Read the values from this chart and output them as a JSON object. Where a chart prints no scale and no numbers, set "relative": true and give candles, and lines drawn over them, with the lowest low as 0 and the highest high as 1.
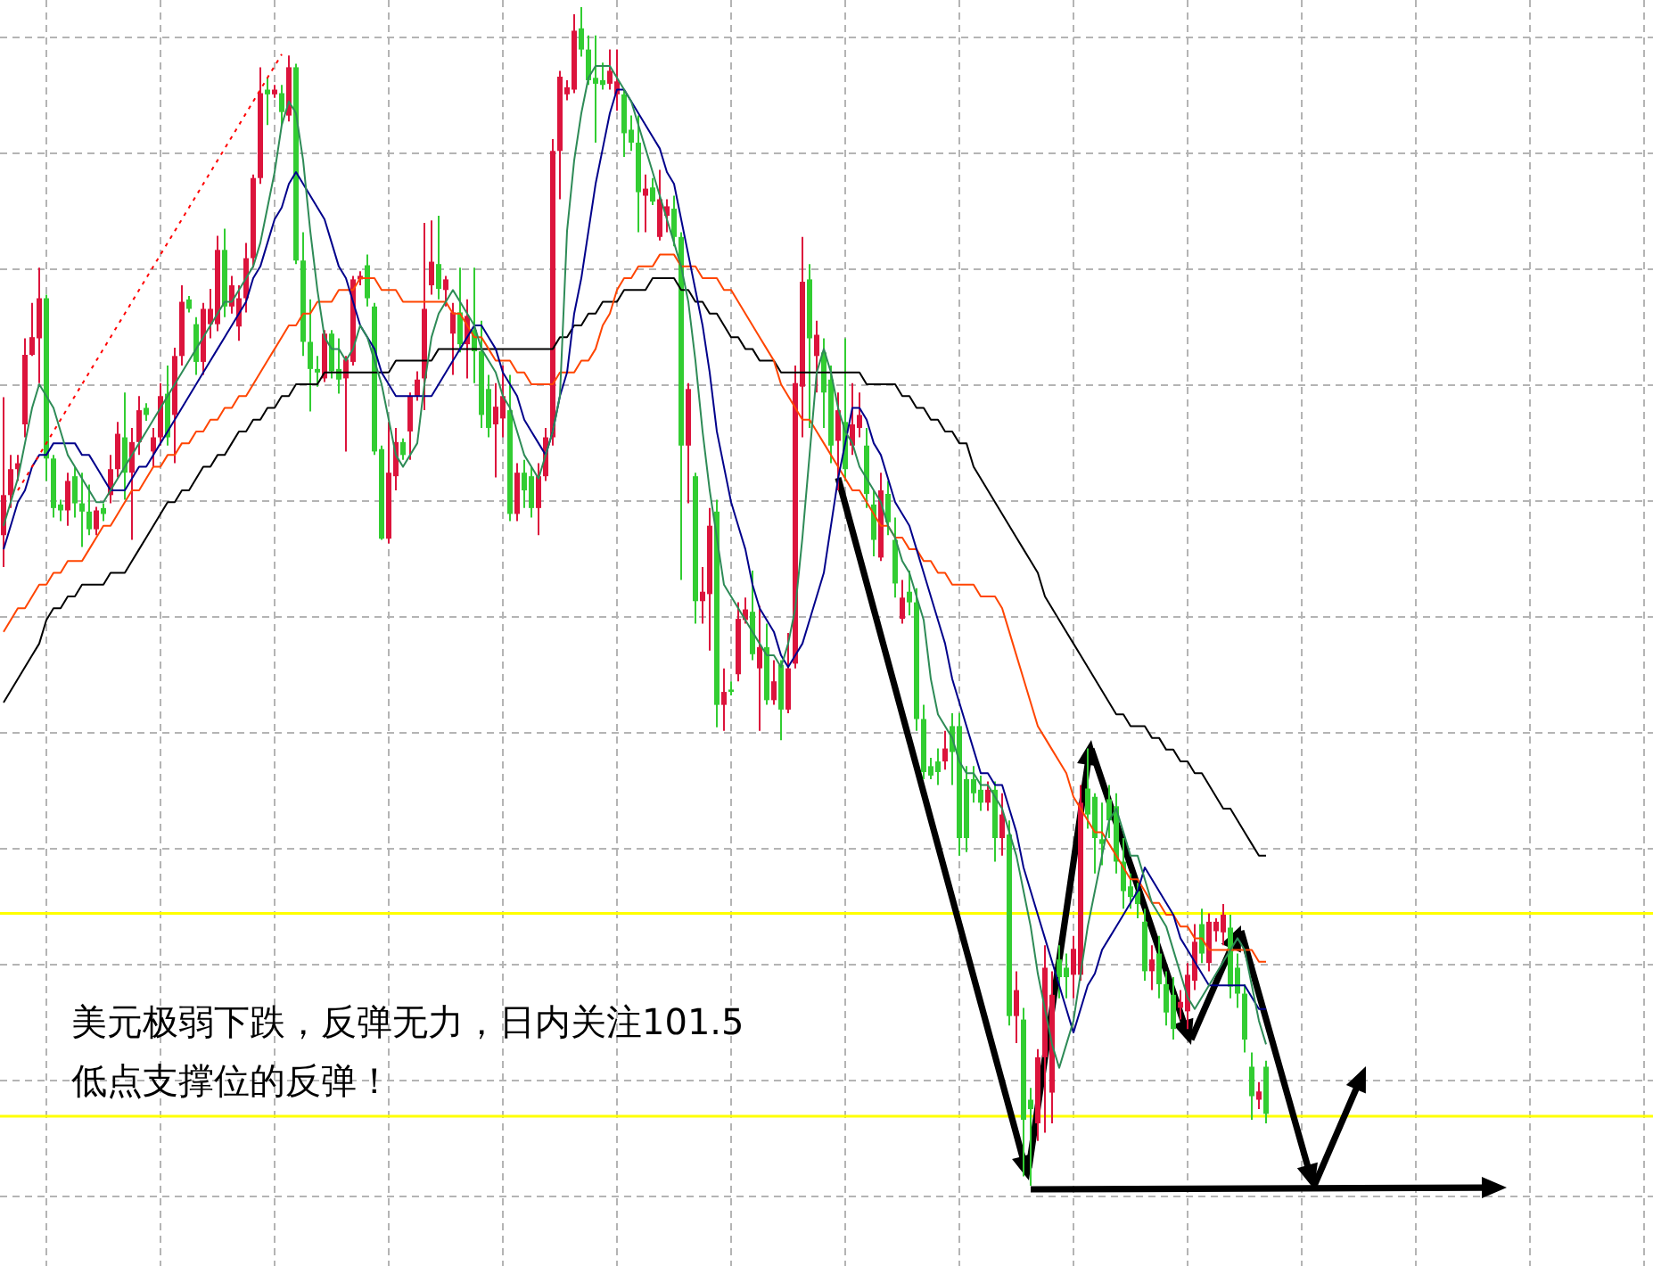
{
  "chart_data": {
    "type": "candlestick",
    "relative": true,
    "grid": true,
    "categories": [
      null,
      null,
      null,
      null,
      null,
      null,
      null,
      null,
      null,
      null,
      null,
      null,
      null,
      null,
      null,
      null,
      null,
      null,
      null,
      null,
      null,
      null,
      null,
      null,
      null,
      null,
      null,
      null,
      null,
      null,
      null,
      null,
      null,
      null,
      null,
      null,
      null,
      null,
      null,
      null,
      null,
      null,
      null,
      null,
      null,
      null,
      null,
      null,
      null,
      null,
      null,
      null,
      null,
      null,
      null,
      null,
      null,
      null,
      null,
      null,
      null,
      null,
      null,
      null,
      null,
      null,
      null,
      null,
      null,
      null,
      null,
      null,
      null,
      null,
      null,
      null,
      null,
      null,
      null,
      null,
      null,
      null,
      null,
      null,
      null,
      null,
      null,
      null,
      null,
      null,
      null,
      null,
      null,
      null,
      null,
      null,
      null,
      null,
      null,
      null,
      null,
      null,
      null,
      null,
      null,
      null,
      null,
      null,
      null,
      null,
      null,
      null,
      null,
      null,
      null,
      null,
      null,
      null,
      null,
      null,
      null,
      null,
      null,
      null,
      null,
      null,
      null,
      null,
      null,
      null,
      null,
      null,
      null,
      null,
      null,
      null,
      null,
      null,
      null,
      null,
      null,
      null,
      null,
      null,
      null,
      null,
      null,
      null,
      null,
      null,
      null,
      null,
      null,
      null,
      null,
      null,
      null,
      null,
      null,
      null,
      null,
      null,
      null,
      null,
      null,
      null,
      null,
      null,
      null,
      null,
      null,
      null,
      null,
      null,
      null,
      null,
      null,
      null
    ],
    "ohlc": [
      [
        0.552,
        0.669,
        0.525,
        0.586
      ],
      [
        0.586,
        0.62,
        0.575,
        0.608
      ],
      [
        0.608,
        0.62,
        0.598,
        0.613
      ],
      [
        0.646,
        0.719,
        0.635,
        0.705
      ],
      [
        0.705,
        0.749,
        0.704,
        0.72
      ],
      [
        0.719,
        0.779,
        0.681,
        0.753
      ],
      [
        0.753,
        0.756,
        0.598,
        0.617
      ],
      [
        0.617,
        0.62,
        0.567,
        0.575
      ],
      [
        0.578,
        0.582,
        0.564,
        0.573
      ],
      [
        0.573,
        0.605,
        0.56,
        0.598
      ],
      [
        0.602,
        0.61,
        0.567,
        0.579
      ],
      [
        0.579,
        0.605,
        0.542,
        0.572
      ],
      [
        0.572,
        0.595,
        0.552,
        0.557
      ],
      [
        0.557,
        0.576,
        0.552,
        0.573
      ],
      [
        0.575,
        0.579,
        0.564,
        0.57
      ],
      [
        0.586,
        0.62,
        0.579,
        0.608
      ],
      [
        0.608,
        0.648,
        0.601,
        0.638
      ],
      [
        0.635,
        0.673,
        0.582,
        0.605
      ],
      [
        0.605,
        0.643,
        0.548,
        0.631
      ],
      [
        0.631,
        0.67,
        0.62,
        0.658
      ],
      [
        0.66,
        0.664,
        0.649,
        0.654
      ],
      [
        0.623,
        0.643,
        0.61,
        0.635
      ],
      [
        0.635,
        0.681,
        0.628,
        0.67
      ],
      [
        0.672,
        0.696,
        0.628,
        0.635
      ],
      [
        0.654,
        0.711,
        0.613,
        0.704
      ],
      [
        0.704,
        0.764,
        0.696,
        0.75
      ],
      [
        0.752,
        0.755,
        0.741,
        0.744
      ],
      [
        0.731,
        0.737,
        0.688,
        0.699
      ],
      [
        0.699,
        0.749,
        0.688,
        0.744
      ],
      [
        0.731,
        0.761,
        0.719,
        0.744
      ],
      [
        0.731,
        0.806,
        0.725,
        0.794
      ],
      [
        0.794,
        0.812,
        0.737,
        0.746
      ],
      [
        0.746,
        0.772,
        0.74,
        0.764
      ],
      [
        0.729,
        0.764,
        0.717,
        0.753
      ],
      [
        0.753,
        0.8,
        0.741,
        0.787
      ],
      [
        0.787,
        0.858,
        0.779,
        0.855
      ],
      [
        0.855,
        0.949,
        0.85,
        0.927
      ],
      [
        0.93,
        0.94,
        0.9,
        0.926
      ],
      [
        0.926,
        0.934,
        0.923,
        0.93
      ],
      [
        0.927,
        0.934,
        0.9,
        0.911
      ],
      [
        0.908,
        0.959,
        0.903,
        0.949
      ],
      [
        0.949,
        0.952,
        0.782,
        0.785
      ],
      [
        0.785,
        0.809,
        0.704,
        0.716
      ],
      [
        0.716,
        0.752,
        0.657,
        0.693
      ],
      [
        0.693,
        0.704,
        0.678,
        0.69
      ],
      [
        0.685,
        0.726,
        0.682,
        0.723
      ],
      [
        0.723,
        0.726,
        0.685,
        0.691
      ],
      [
        0.693,
        0.719,
        0.672,
        0.684
      ],
      [
        0.685,
        0.704,
        0.623,
        0.701
      ],
      [
        0.699,
        0.772,
        0.696,
        0.769
      ],
      [
        0.769,
        0.776,
        0.764,
        0.772
      ],
      [
        0.781,
        0.79,
        0.746,
        0.753
      ],
      [
        0.746,
        0.749,
        0.62,
        0.623
      ],
      [
        0.625,
        0.628,
        0.548,
        0.549
      ],
      [
        0.549,
        0.648,
        0.545,
        0.605
      ],
      [
        0.602,
        0.643,
        0.59,
        0.631
      ],
      [
        0.631,
        0.634,
        0.616,
        0.62
      ],
      [
        0.64,
        0.673,
        0.616,
        0.67
      ],
      [
        0.67,
        0.691,
        0.666,
        0.684
      ],
      [
        0.685,
        0.817,
        0.658,
        0.744
      ],
      [
        0.764,
        0.819,
        0.756,
        0.784
      ],
      [
        0.782,
        0.823,
        0.752,
        0.761
      ],
      [
        0.76,
        0.772,
        0.746,
        0.769
      ],
      [
        0.723,
        0.749,
        0.688,
        0.741
      ],
      [
        0.741,
        0.779,
        0.707,
        0.714
      ],
      [
        0.714,
        0.752,
        0.685,
        0.738
      ],
      [
        0.726,
        0.779,
        0.681,
        0.708
      ],
      [
        0.708,
        0.734,
        0.643,
        0.654
      ],
      [
        0.676,
        0.688,
        0.635,
        0.643
      ],
      [
        0.646,
        0.681,
        0.601,
        0.661
      ],
      [
        0.651,
        0.696,
        0.635,
        0.67
      ],
      [
        0.658,
        0.688,
        0.564,
        0.57
      ],
      [
        0.57,
        0.613,
        0.564,
        0.605
      ],
      [
        0.605,
        0.616,
        0.575,
        0.59
      ],
      [
        0.602,
        0.61,
        0.567,
        0.575
      ],
      [
        0.575,
        0.613,
        0.552,
        0.602
      ],
      [
        0.602,
        0.643,
        0.598,
        0.635
      ],
      [
        0.635,
        0.888,
        0.628,
        0.878
      ],
      [
        0.878,
        0.946,
        0.837,
        0.941
      ],
      [
        0.926,
        0.938,
        0.921,
        0.932
      ],
      [
        0.93,
        0.994,
        0.927,
        0.98
      ],
      [
        0.982,
        1,
        0.958,
        0.964
      ],
      [
        0.964,
        0.976,
        0.934,
        0.938
      ],
      [
        0.94,
        0.976,
        0.885,
        0.935
      ],
      [
        0.938,
        0.953,
        0.93,
        0.934
      ],
      [
        0.935,
        0.964,
        0.93,
        0.946
      ],
      [
        0.926,
        0.964,
        0.912,
        0.937
      ],
      [
        0.926,
        0.93,
        0.873,
        0.893
      ],
      [
        0.896,
        0.908,
        0.878,
        0.885
      ],
      [
        0.885,
        0.908,
        0.809,
        0.843
      ],
      [
        0.84,
        0.858,
        0.809,
        0.846
      ],
      [
        0.847,
        0.855,
        0.832,
        0.835
      ],
      [
        0.805,
        0.862,
        0.802,
        0.837
      ],
      [
        0.823,
        0.837,
        0.809,
        0.831
      ],
      [
        0.829,
        0.84,
        0.797,
        0.805
      ],
      [
        0.805,
        0.809,
        0.514,
        0.628
      ],
      [
        0.628,
        0.681,
        0.579,
        0.676
      ],
      [
        0.602,
        0.605,
        0.477,
        0.496
      ],
      [
        0.496,
        0.525,
        0.477,
        0.504
      ],
      [
        0.502,
        0.575,
        0.454,
        0.56
      ],
      [
        0.572,
        0.582,
        0.389,
        0.408
      ],
      [
        0.408,
        0.439,
        0.386,
        0.419
      ],
      [
        0.421,
        0.428,
        0.416,
        0.419
      ],
      [
        0.434,
        0.495,
        0.428,
        0.481
      ],
      [
        0.48,
        0.499,
        0.477,
        0.489
      ],
      [
        0.487,
        0.522,
        0.446,
        0.451
      ],
      [
        0.439,
        0.492,
        0.386,
        0.457
      ],
      [
        0.457,
        0.477,
        0.408,
        0.412
      ],
      [
        0.412,
        0.446,
        0.408,
        0.428
      ],
      [
        0.442,
        0.446,
        0.378,
        0.404
      ],
      [
        0.404,
        0.469,
        0.401,
        0.439
      ],
      [
        0.443,
        0.696,
        0.439,
        0.681
      ],
      [
        0.678,
        0.805,
        0.635,
        0.767
      ],
      [
        0.769,
        0.782,
        0.643,
        0.719
      ],
      [
        0.704,
        0.734,
        0.673,
        0.722
      ],
      [
        0.707,
        0.719,
        0.643,
        0.673
      ],
      [
        0.684,
        0.696,
        0.613,
        0.628
      ],
      [
        0.632,
        0.673,
        0.59,
        0.658
      ],
      [
        0.648,
        0.719,
        0.598,
        0.608
      ],
      [
        0.628,
        0.681,
        0.62,
        0.646
      ],
      [
        0.643,
        0.673,
        0.635,
        0.654
      ],
      [
        0.628,
        0.643,
        0.575,
        0.587
      ],
      [
        0.578,
        0.59,
        0.534,
        0.548
      ],
      [
        0.533,
        0.605,
        0.53,
        0.59
      ],
      [
        0.587,
        0.598,
        0.552,
        0.563
      ],
      [
        0.548,
        0.567,
        0.499,
        0.511
      ],
      [
        0.481,
        0.514,
        0.477,
        0.499
      ],
      [
        0.504,
        0.522,
        0.484,
        0.495
      ],
      [
        0.495,
        0.507,
        0.386,
        0.396
      ],
      [
        0.396,
        0.408,
        0.345,
        0.351
      ],
      [
        0.356,
        0.363,
        0.345,
        0.348
      ],
      [
        0.36,
        0.371,
        0.34,
        0.351
      ],
      [
        0.36,
        0.386,
        0.353,
        0.371
      ],
      [
        0.39,
        0.401,
        0.34,
        0.368
      ],
      [
        0.39,
        0.401,
        0.28,
        0.295
      ],
      [
        0.345,
        0.356,
        0.283,
        0.295
      ],
      [
        0.345,
        0.356,
        0.325,
        0.333
      ],
      [
        0.336,
        0.348,
        0.318,
        0.325
      ],
      [
        0.325,
        0.343,
        0.318,
        0.336
      ],
      [
        0.336,
        0.343,
        0.275,
        0.295
      ],
      [
        0.295,
        0.333,
        0.28,
        0.315
      ],
      [
        0.298,
        0.31,
        0.136,
        0.144
      ],
      [
        0.144,
        0.182,
        0.121,
        0.166
      ],
      [
        0.141,
        0.151,
        0.008,
        0.056
      ],
      [
        0.073,
        0.083,
        0,
        0.065
      ],
      [
        0.053,
        0.116,
        0.038,
        0.109
      ],
      [
        0.109,
        0.204,
        0.045,
        0.185
      ],
      [
        0.079,
        0.182,
        0.053,
        0.162
      ],
      [
        0.192,
        0.204,
        0.159,
        0.177
      ],
      [
        0.185,
        0.197,
        0.159,
        0.177
      ],
      [
        0.179,
        0.212,
        0.159,
        0.201
      ],
      [
        0.179,
        0.34,
        0.174,
        0.325
      ],
      [
        0.337,
        0.371,
        0.303,
        0.315
      ],
      [
        0.33,
        0.333,
        0.265,
        0.295
      ],
      [
        0.294,
        0.325,
        0.272,
        0.29
      ],
      [
        0.328,
        0.34,
        0.295,
        0.31
      ],
      [
        0.322,
        0.333,
        0.265,
        0.275
      ],
      [
        0.275,
        0.295,
        0.235,
        0.25
      ],
      [
        0.254,
        0.265,
        0.235,
        0.245
      ],
      [
        0.25,
        0.257,
        0.227,
        0.239
      ],
      [
        0.224,
        0.235,
        0.174,
        0.182
      ],
      [
        0.182,
        0.204,
        0.166,
        0.192
      ],
      [
        0.197,
        0.212,
        0.159,
        0.171
      ],
      [
        0.171,
        0.182,
        0.136,
        0.147
      ],
      [
        0.162,
        0.177,
        0.124,
        0.133
      ],
      [
        0.151,
        0.166,
        0.141,
        0.156
      ],
      [
        0.148,
        0.189,
        0.133,
        0.179
      ],
      [
        0.174,
        0.222,
        0.166,
        0.207
      ],
      [
        0.222,
        0.235,
        0.189,
        0.197
      ],
      [
        0.189,
        0.231,
        0.182,
        0.224
      ],
      [
        0.216,
        0.227,
        0.207,
        0.224
      ],
      [
        0.215,
        0.239,
        0.204,
        0.23
      ],
      [
        0.219,
        0.23,
        0.159,
        0.169
      ],
      [
        0.185,
        0.197,
        0.151,
        0.163
      ],
      [
        0.163,
        0.171,
        0.113,
        0.124
      ],
      [
        0.101,
        0.113,
        0.056,
        0.076
      ],
      [
        0.073,
        0.088,
        0.065,
        0.08
      ],
      [
        0.101,
        0.106,
        0.053,
        0.061
      ]
    ],
    "colors": [
      "#dc143c",
      "#dc143c",
      "#dc143c",
      "#dc143c",
      "#dc143c",
      "#dc143c",
      "#32cd32",
      "#32cd32",
      "#32cd32",
      "#dc143c",
      "#32cd32",
      "#32cd32",
      "#32cd32",
      "#dc143c",
      "#32cd32",
      "#dc143c",
      "#dc143c",
      "#32cd32",
      "#dc143c",
      "#dc143c",
      "#32cd32",
      "#dc143c",
      "#dc143c",
      "#32cd32",
      "#dc143c",
      "#dc143c",
      "#32cd32",
      "#32cd32",
      "#dc143c",
      "#dc143c",
      "#dc143c",
      "#32cd32",
      "#dc143c",
      "#dc143c",
      "#dc143c",
      "#dc143c",
      "#dc143c",
      "#32cd32",
      "#dc143c",
      "#32cd32",
      "#dc143c",
      "#32cd32",
      "#32cd32",
      "#32cd32",
      "#32cd32",
      "#dc143c",
      "#32cd32",
      "#32cd32",
      "#dc143c",
      "#dc143c",
      "#dc143c",
      "#32cd32",
      "#32cd32",
      "#32cd32",
      "#dc143c",
      "#dc143c",
      "#32cd32",
      "#dc143c",
      "#dc143c",
      "#dc143c",
      "#dc143c",
      "#32cd32",
      "#dc143c",
      "#dc143c",
      "#32cd32",
      "#dc143c",
      "#32cd32",
      "#32cd32",
      "#32cd32",
      "#dc143c",
      "#dc143c",
      "#32cd32",
      "#dc143c",
      "#32cd32",
      "#32cd32",
      "#dc143c",
      "#dc143c",
      "#dc143c",
      "#dc143c",
      "#dc143c",
      "#dc143c",
      "#32cd32",
      "#32cd32",
      "#32cd32",
      "#32cd32",
      "#dc143c",
      "#dc143c",
      "#32cd32",
      "#32cd32",
      "#32cd32",
      "#dc143c",
      "#32cd32",
      "#dc143c",
      "#dc143c",
      "#32cd32",
      "#32cd32",
      "#dc143c",
      "#32cd32",
      "#dc143c",
      "#dc143c",
      "#32cd32",
      "#dc143c",
      "#32cd32",
      "#dc143c",
      "#dc143c",
      "#32cd32",
      "#dc143c",
      "#32cd32",
      "#dc143c",
      "#32cd32",
      "#dc143c",
      "#dc143c",
      "#dc143c",
      "#32cd32",
      "#dc143c",
      "#32cd32",
      "#32cd32",
      "#dc143c",
      "#32cd32",
      "#dc143c",
      "#dc143c",
      "#32cd32",
      "#32cd32",
      "#dc143c",
      "#32cd32",
      "#32cd32",
      "#dc143c",
      "#32cd32",
      "#32cd32",
      "#32cd32",
      "#32cd32",
      "#32cd32",
      "#dc143c",
      "#32cd32",
      "#32cd32",
      "#32cd32",
      "#32cd32",
      "#32cd32",
      "#dc143c",
      "#32cd32",
      "#dc143c",
      "#32cd32",
      "#dc143c",
      "#32cd32",
      "#32cd32",
      "#dc143c",
      "#dc143c",
      "#dc143c",
      "#32cd32",
      "#32cd32",
      "#dc143c",
      "#dc143c",
      "#32cd32",
      "#32cd32",
      "#32cd32",
      "#32cd32",
      "#32cd32",
      "#32cd32",
      "#32cd32",
      "#32cd32",
      "#32cd32",
      "#dc143c",
      "#32cd32",
      "#32cd32",
      "#32cd32",
      "#dc143c",
      "#dc143c",
      "#dc143c",
      "#32cd32",
      "#dc143c",
      "#dc143c",
      "#dc143c",
      "#32cd32",
      "#32cd32",
      "#32cd32",
      "#32cd32",
      "#dc143c",
      "#32cd32"
    ],
    "series": [
      {
        "type": "line",
        "color": "#000000",
        "values": [
          0.41,
          0.42,
          0.43,
          0.44,
          0.45,
          0.46,
          0.48,
          0.49,
          0.49,
          0.5,
          0.5,
          0.51,
          0.51,
          0.51,
          0.51,
          0.52,
          0.52,
          0.52,
          0.53,
          0.54,
          0.55,
          0.56,
          0.57,
          0.58,
          0.58,
          0.59,
          0.59,
          0.6,
          0.61,
          0.61,
          0.62,
          0.62,
          0.63,
          0.64,
          0.64,
          0.65,
          0.65,
          0.66,
          0.66,
          0.67,
          0.67,
          0.68,
          0.68,
          0.68,
          0.68,
          0.69,
          0.69,
          0.69,
          0.69,
          0.69,
          0.69,
          0.69,
          0.69,
          0.69,
          0.69,
          0.7,
          0.7,
          0.7,
          0.7,
          0.7,
          0.7,
          0.71,
          0.71,
          0.71,
          0.71,
          0.71,
          0.71,
          0.71,
          0.71,
          0.71,
          0.71,
          0.71,
          0.71,
          0.71,
          0.71,
          0.71,
          0.71,
          0.71,
          0.72,
          0.72,
          0.73,
          0.73,
          0.74,
          0.74,
          0.75,
          0.75,
          0.75,
          0.76,
          0.76,
          0.76,
          0.76,
          0.77,
          0.77,
          0.77,
          0.77,
          0.76,
          0.76,
          0.75,
          0.75,
          0.74,
          0.74,
          0.73,
          0.72,
          0.72,
          0.71,
          0.71,
          0.7,
          0.7,
          0.7,
          0.69,
          0.69,
          0.69,
          0.69,
          0.69,
          0.69,
          0.69,
          0.69,
          0.69,
          0.69,
          0.69,
          0.69,
          0.68,
          0.68,
          0.68,
          0.68,
          0.68,
          0.67,
          0.67,
          0.66,
          0.66,
          0.65,
          0.65,
          0.64,
          0.64,
          0.63,
          0.63,
          0.61,
          0.6,
          0.59,
          0.58,
          0.57,
          0.56,
          0.55,
          0.54,
          0.53,
          0.52,
          0.5,
          0.49,
          0.48,
          0.47,
          0.46,
          0.45,
          0.44,
          0.43,
          0.42,
          0.41,
          0.4,
          0.4,
          0.39,
          0.39,
          0.39,
          0.38,
          0.38,
          0.37,
          0.37,
          0.36,
          0.36,
          0.35,
          0.35,
          0.34,
          0.33,
          0.32,
          0.32,
          0.31,
          0.3,
          0.29,
          0.28,
          0.28
        ]
      },
      {
        "type": "line",
        "color": "#ff4500",
        "values": [
          0.47,
          0.48,
          0.49,
          0.49,
          0.5,
          0.51,
          0.51,
          0.52,
          0.52,
          0.53,
          0.53,
          0.53,
          0.54,
          0.55,
          0.56,
          0.56,
          0.57,
          0.58,
          0.59,
          0.59,
          0.6,
          0.61,
          0.61,
          0.62,
          0.62,
          0.63,
          0.63,
          0.64,
          0.64,
          0.65,
          0.65,
          0.66,
          0.66,
          0.67,
          0.67,
          0.68,
          0.69,
          0.7,
          0.71,
          0.72,
          0.73,
          0.73,
          0.74,
          0.74,
          0.75,
          0.75,
          0.75,
          0.76,
          0.76,
          0.76,
          0.77,
          0.77,
          0.77,
          0.76,
          0.76,
          0.76,
          0.75,
          0.75,
          0.75,
          0.75,
          0.75,
          0.75,
          0.75,
          0.74,
          0.74,
          0.73,
          0.72,
          0.72,
          0.71,
          0.7,
          0.7,
          0.7,
          0.69,
          0.69,
          0.68,
          0.68,
          0.68,
          0.68,
          0.69,
          0.69,
          0.69,
          0.7,
          0.7,
          0.71,
          0.73,
          0.74,
          0.76,
          0.77,
          0.77,
          0.78,
          0.78,
          0.78,
          0.79,
          0.79,
          0.79,
          0.78,
          0.78,
          0.78,
          0.77,
          0.77,
          0.77,
          0.76,
          0.76,
          0.75,
          0.74,
          0.73,
          0.72,
          0.71,
          0.7,
          0.68,
          0.67,
          0.66,
          0.65,
          0.65,
          0.64,
          0.63,
          0.62,
          0.61,
          0.6,
          0.59,
          0.59,
          0.58,
          0.57,
          0.56,
          0.56,
          0.55,
          0.55,
          0.54,
          0.54,
          0.53,
          0.53,
          0.52,
          0.52,
          0.51,
          0.51,
          0.51,
          0.51,
          0.5,
          0.5,
          0.5,
          0.49,
          0.47,
          0.45,
          0.43,
          0.41,
          0.39,
          0.38,
          0.37,
          0.36,
          0.35,
          0.33,
          0.32,
          0.31,
          0.3,
          0.3,
          0.29,
          0.28,
          0.27,
          0.26,
          0.26,
          0.25,
          0.24,
          0.24,
          0.23,
          0.23,
          0.22,
          0.22,
          0.21,
          0.21,
          0.2,
          0.2,
          0.2,
          0.2,
          0.2,
          0.2,
          0.2,
          0.19,
          0.19
        ]
      },
      {
        "type": "line",
        "color": "#00008b",
        "values": [
          0.54,
          0.56,
          0.58,
          0.59,
          0.61,
          0.62,
          0.62,
          0.63,
          0.63,
          0.63,
          0.63,
          0.62,
          0.62,
          0.61,
          0.6,
          0.59,
          0.59,
          0.59,
          0.6,
          0.61,
          0.61,
          0.62,
          0.63,
          0.64,
          0.65,
          0.66,
          0.67,
          0.68,
          0.69,
          0.7,
          0.71,
          0.72,
          0.73,
          0.74,
          0.75,
          0.77,
          0.78,
          0.8,
          0.82,
          0.83,
          0.85,
          0.86,
          0.85,
          0.84,
          0.83,
          0.82,
          0.8,
          0.78,
          0.77,
          0.75,
          0.73,
          0.72,
          0.71,
          0.69,
          0.68,
          0.67,
          0.67,
          0.67,
          0.67,
          0.67,
          0.67,
          0.68,
          0.69,
          0.7,
          0.71,
          0.72,
          0.73,
          0.73,
          0.72,
          0.71,
          0.69,
          0.68,
          0.67,
          0.65,
          0.64,
          0.63,
          0.62,
          0.64,
          0.67,
          0.69,
          0.74,
          0.77,
          0.81,
          0.85,
          0.88,
          0.91,
          0.93,
          0.93,
          0.92,
          0.91,
          0.9,
          0.89,
          0.88,
          0.86,
          0.85,
          0.82,
          0.79,
          0.76,
          0.73,
          0.69,
          0.64,
          0.61,
          0.58,
          0.56,
          0.54,
          0.51,
          0.49,
          0.48,
          0.47,
          0.45,
          0.44,
          0.45,
          0.46,
          0.48,
          0.5,
          0.52,
          0.56,
          0.6,
          0.63,
          0.66,
          0.66,
          0.65,
          0.63,
          0.62,
          0.6,
          0.58,
          0.57,
          0.56,
          0.54,
          0.52,
          0.5,
          0.48,
          0.46,
          0.43,
          0.41,
          0.39,
          0.37,
          0.35,
          0.35,
          0.34,
          0.34,
          0.32,
          0.3,
          0.27,
          0.25,
          0.23,
          0.21,
          0.19,
          0.17,
          0.15,
          0.13,
          0.15,
          0.17,
          0.18,
          0.2,
          0.21,
          0.22,
          0.23,
          0.24,
          0.25,
          0.27,
          0.26,
          0.25,
          0.24,
          0.23,
          0.21,
          0.2,
          0.19,
          0.18,
          0.17,
          0.17,
          0.17,
          0.17,
          0.17,
          0.17,
          0.16,
          0.15,
          0.15
        ]
      },
      {
        "type": "line",
        "color": "#2e8b57",
        "values": [
          0.56,
          0.58,
          0.6,
          0.63,
          0.66,
          0.68,
          0.67,
          0.66,
          0.64,
          0.62,
          0.61,
          0.6,
          0.59,
          0.58,
          0.58,
          0.59,
          0.6,
          0.61,
          0.62,
          0.63,
          0.64,
          0.65,
          0.66,
          0.67,
          0.68,
          0.69,
          0.7,
          0.71,
          0.72,
          0.73,
          0.74,
          0.75,
          0.75,
          0.76,
          0.77,
          0.78,
          0.8,
          0.83,
          0.86,
          0.9,
          0.92,
          0.91,
          0.87,
          0.81,
          0.76,
          0.72,
          0.71,
          0.71,
          0.7,
          0.71,
          0.73,
          0.72,
          0.7,
          0.68,
          0.65,
          0.62,
          0.61,
          0.62,
          0.63,
          0.68,
          0.72,
          0.74,
          0.75,
          0.76,
          0.75,
          0.74,
          0.73,
          0.71,
          0.7,
          0.69,
          0.67,
          0.66,
          0.64,
          0.62,
          0.61,
          0.6,
          0.62,
          0.64,
          0.67,
          0.81,
          0.87,
          0.91,
          0.94,
          0.95,
          0.95,
          0.95,
          0.94,
          0.93,
          0.92,
          0.9,
          0.88,
          0.86,
          0.84,
          0.82,
          0.8,
          0.78,
          0.75,
          0.7,
          0.64,
          0.59,
          0.55,
          0.51,
          0.5,
          0.49,
          0.48,
          0.47,
          0.46,
          0.45,
          0.45,
          0.44,
          0.46,
          0.49,
          0.55,
          0.62,
          0.69,
          0.71,
          0.69,
          0.66,
          0.64,
          0.63,
          0.61,
          0.6,
          0.59,
          0.58,
          0.56,
          0.55,
          0.53,
          0.52,
          0.5,
          0.48,
          0.43,
          0.4,
          0.39,
          0.38,
          0.36,
          0.35,
          0.35,
          0.34,
          0.34,
          0.33,
          0.32,
          0.3,
          0.28,
          0.25,
          0.22,
          0.18,
          0.15,
          0.12,
          0.1,
          0.12,
          0.14,
          0.18,
          0.22,
          0.25,
          0.28,
          0.31,
          0.32,
          0.3,
          0.28,
          0.28,
          0.26,
          0.24,
          0.23,
          0.22,
          0.2,
          0.18,
          0.16,
          0.15,
          0.16,
          0.17,
          0.18,
          0.19,
          0.2,
          0.21,
          0.2,
          0.17,
          0.14,
          0.12
        ]
      },
      {
        "type": "line",
        "color": "#ff0000",
        "line_style": "dotted",
        "values": [
          null,
          null,
          0.59,
          0.6,
          0.61,
          0.62,
          0.63,
          0.64,
          0.65,
          0.66,
          0.67,
          0.68,
          0.69,
          0.7,
          0.71,
          0.72,
          0.73,
          0.74,
          0.75,
          0.76,
          0.77,
          0.78,
          0.79,
          0.8,
          0.81,
          0.82,
          0.83,
          0.84,
          0.85,
          0.86,
          0.87,
          0.88,
          0.89,
          0.9,
          0.91,
          0.92,
          0.93,
          0.94,
          0.95,
          0.96,
          null,
          null,
          null,
          null,
          null,
          null,
          null,
          null,
          null,
          null,
          null,
          null,
          null,
          null,
          null,
          null,
          null,
          null,
          null,
          null,
          null,
          null,
          null,
          null,
          null,
          null,
          null,
          null,
          null,
          null,
          null,
          null,
          null,
          null,
          null,
          null,
          null,
          null,
          null,
          null,
          null,
          null,
          null,
          null,
          null,
          null,
          null,
          null,
          null,
          null,
          null,
          null,
          null,
          null,
          null,
          null,
          null,
          null,
          null,
          null,
          null,
          null,
          null,
          null,
          null,
          null,
          null,
          null,
          null,
          null,
          null,
          null,
          null,
          null,
          null,
          null,
          null,
          null,
          null,
          null,
          null,
          null,
          null,
          null,
          null,
          null,
          null,
          null,
          null,
          null,
          null,
          null,
          null,
          null,
          null,
          null,
          null,
          null,
          null,
          null,
          null,
          null,
          null,
          null,
          null,
          null,
          null,
          null,
          null,
          null,
          null,
          null,
          null,
          null,
          null,
          null,
          null,
          null,
          null,
          null,
          null,
          null,
          null,
          null,
          null,
          null,
          null,
          null,
          null,
          null,
          null,
          null,
          null,
          null,
          null,
          null,
          null,
          null
        ]
      }
    ],
    "ref_lines": [
      {
        "axis": "y",
        "value": 0.231,
        "color": "#ffff00"
      },
      {
        "axis": "y",
        "value": 0.059,
        "color": "#ffff00"
      }
    ],
    "annotations": [
      "美元极弱下跌，反弹无力，日内关注101.5",
      "低点支撑位的反弹！"
    ]
  }
}
